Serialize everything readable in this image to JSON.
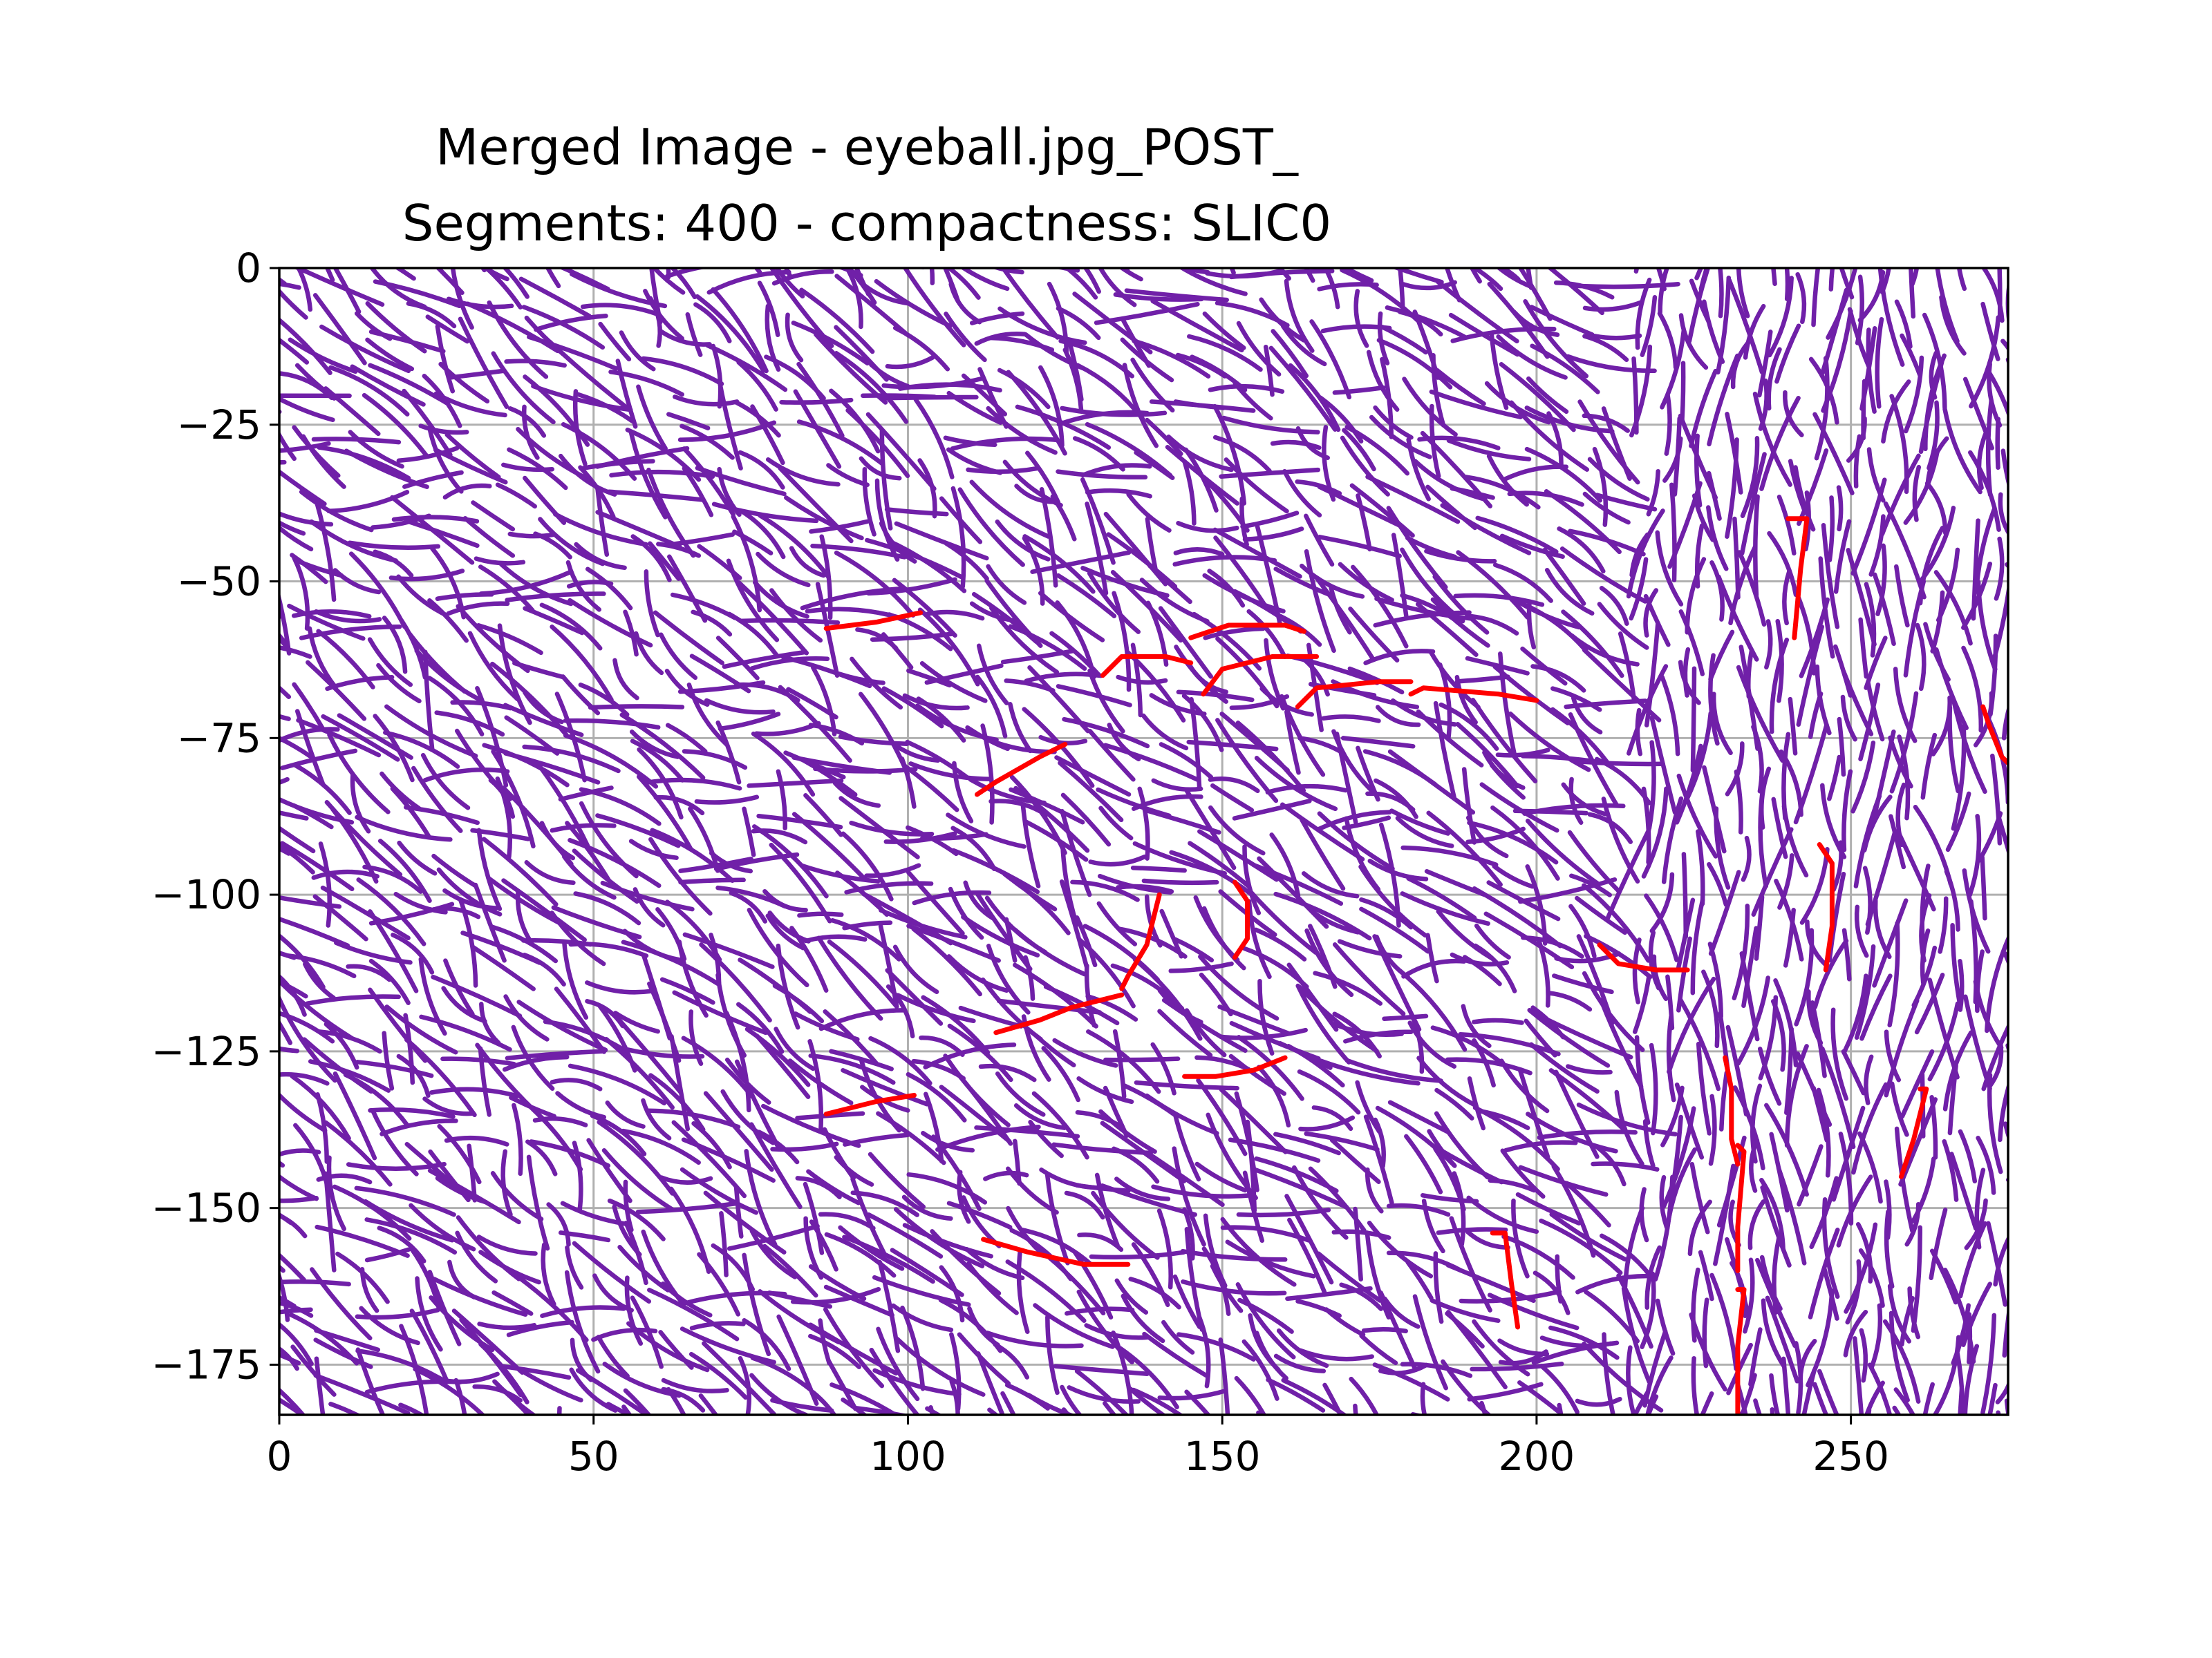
{
  "chart_data": {
    "type": "line",
    "title": "Merged Image - eyeball.jpg_POST_",
    "subtitle": "Segments: 400 - compactness: SLIC0",
    "xlabel": "",
    "ylabel": "",
    "xlim": [
      0,
      275
    ],
    "ylim": [
      -183,
      0
    ],
    "xticks": [
      0,
      50,
      100,
      150,
      200,
      250
    ],
    "yticks": [
      0,
      -25,
      -50,
      -75,
      -100,
      -125,
      -150,
      -175
    ],
    "xtick_labels": [
      "0",
      "50",
      "100",
      "150",
      "200",
      "250"
    ],
    "ytick_labels": [
      "0",
      "−25",
      "−50",
      "−75",
      "−100",
      "−125",
      "−150",
      "−175"
    ],
    "grid": true,
    "legend": "none",
    "series_colors": {
      "boundary": "#7020a8",
      "highlight": "#ff0000"
    },
    "series": [
      {
        "color": "#ff0000",
        "segments": [
          [
            [
              87,
              -57.5
            ],
            [
              95,
              -56.5
            ],
            [
              102,
              -55
            ]
          ],
          [
            [
              131,
              -65
            ],
            [
              134,
              -62
            ],
            [
              141,
              -62
            ],
            [
              145,
              -63
            ]
          ],
          [
            [
              145,
              -59
            ],
            [
              151,
              -57
            ],
            [
              160,
              -57
            ],
            [
              163,
              -58
            ]
          ],
          [
            [
              147,
              -68
            ],
            [
              150,
              -64
            ],
            [
              158,
              -62
            ],
            [
              165,
              -62
            ]
          ],
          [
            [
              162,
              -70
            ],
            [
              165,
              -67
            ],
            [
              175,
              -66
            ],
            [
              180,
              -66
            ]
          ],
          [
            [
              180,
              -68
            ],
            [
              182,
              -67
            ],
            [
              194,
              -68
            ],
            [
              200,
              -69
            ]
          ],
          [
            [
              111,
              -84
            ],
            [
              114,
              -82
            ],
            [
              121,
              -78
            ],
            [
              125,
              -76
            ]
          ],
          [
            [
              140,
              -100
            ],
            [
              138,
              -108
            ],
            [
              135,
              -113
            ],
            [
              134,
              -115
            ]
          ],
          [
            [
              152,
              -98
            ],
            [
              154,
              -101
            ],
            [
              154,
              -107
            ],
            [
              152,
              -110
            ]
          ],
          [
            [
              114,
              -122
            ],
            [
              121,
              -120
            ],
            [
              126,
              -118
            ],
            [
              134,
              -116
            ]
          ],
          [
            [
              87,
              -135
            ],
            [
              95,
              -133
            ],
            [
              101,
              -132
            ]
          ],
          [
            [
              144,
              -129
            ],
            [
              149,
              -129
            ],
            [
              155,
              -128
            ],
            [
              160,
              -126
            ]
          ],
          [
            [
              112,
              -155
            ],
            [
              119,
              -157
            ],
            [
              128,
              -159
            ],
            [
              135,
              -159
            ]
          ],
          [
            [
              210,
              -108
            ],
            [
              213,
              -111
            ],
            [
              219,
              -112
            ],
            [
              224,
              -112
            ]
          ],
          [
            [
              240,
              -40
            ],
            [
              243,
              -40
            ],
            [
              242,
              -48
            ],
            [
              241,
              -59
            ]
          ],
          [
            [
              245,
              -92
            ],
            [
              247,
              -95
            ],
            [
              247,
              -105
            ],
            [
              246,
              -112
            ]
          ],
          [
            [
              230,
              -126
            ],
            [
              231,
              -131
            ],
            [
              231,
              -139
            ],
            [
              232,
              -143
            ]
          ],
          [
            [
              232,
              -140
            ],
            [
              233,
              -141
            ],
            [
              232,
              -153
            ],
            [
              232,
              -160
            ]
          ],
          [
            [
              232,
              -163
            ],
            [
              233,
              -163
            ],
            [
              232,
              -172
            ],
            [
              232,
              -183
            ]
          ],
          [
            [
              193,
              -154
            ],
            [
              195,
              -154
            ],
            [
              196,
              -162
            ],
            [
              197,
              -169
            ]
          ],
          [
            [
              261,
              -131
            ],
            [
              262,
              -131
            ],
            [
              260,
              -139
            ],
            [
              258,
              -145
            ]
          ],
          [
            [
              271,
              -70
            ],
            [
              272,
              -73
            ],
            [
              274,
              -78
            ],
            [
              276,
              -80
            ]
          ]
        ]
      }
    ]
  }
}
